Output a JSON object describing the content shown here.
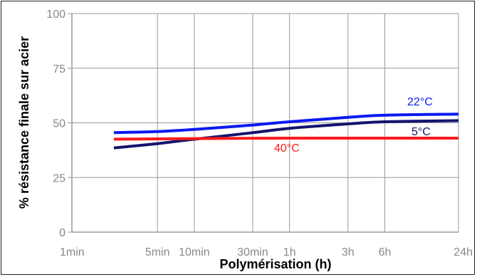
{
  "chart_data": {
    "type": "line",
    "xlabel": "Polymérisation (h)",
    "ylabel": "% résistance finale sur acier",
    "x_scale": "log",
    "x_ticks": [
      {
        "label": "1min",
        "minutes": 1
      },
      {
        "label": "5min",
        "minutes": 5
      },
      {
        "label": "10min",
        "minutes": 10
      },
      {
        "label": "30min",
        "minutes": 30
      },
      {
        "label": "1h",
        "minutes": 60
      },
      {
        "label": "3h",
        "minutes": 180
      },
      {
        "label": "6h",
        "minutes": 360
      },
      {
        "label": "24h",
        "minutes": 1440
      }
    ],
    "y_ticks": [
      {
        "label": "0",
        "value": 0
      },
      {
        "label": "25",
        "value": 25
      },
      {
        "label": "50",
        "value": 50
      },
      {
        "label": "75",
        "value": 75
      },
      {
        "label": "100",
        "value": 100
      }
    ],
    "ylim": [
      0,
      100
    ],
    "xlim_minutes": [
      1,
      1440
    ],
    "grid": true,
    "series": [
      {
        "name": "22°C",
        "color": "#0a1af0",
        "points": [
          [
            2.2,
            45.5
          ],
          [
            5,
            46
          ],
          [
            10,
            47
          ],
          [
            30,
            49
          ],
          [
            60,
            50.5
          ],
          [
            180,
            52.5
          ],
          [
            360,
            53.5
          ],
          [
            1440,
            54
          ]
        ]
      },
      {
        "name": "5°C",
        "color": "#14146e",
        "points": [
          [
            2.2,
            38.5
          ],
          [
            5,
            40.5
          ],
          [
            10,
            42.5
          ],
          [
            30,
            45.5
          ],
          [
            60,
            47.5
          ],
          [
            180,
            49.5
          ],
          [
            360,
            50.5
          ],
          [
            1440,
            51
          ]
        ]
      },
      {
        "name": "40°C",
        "color": "#ff1a1a",
        "points": [
          [
            2.2,
            42.5
          ],
          [
            10,
            42.8
          ],
          [
            60,
            43
          ],
          [
            360,
            43
          ],
          [
            1440,
            43
          ]
        ]
      }
    ]
  }
}
